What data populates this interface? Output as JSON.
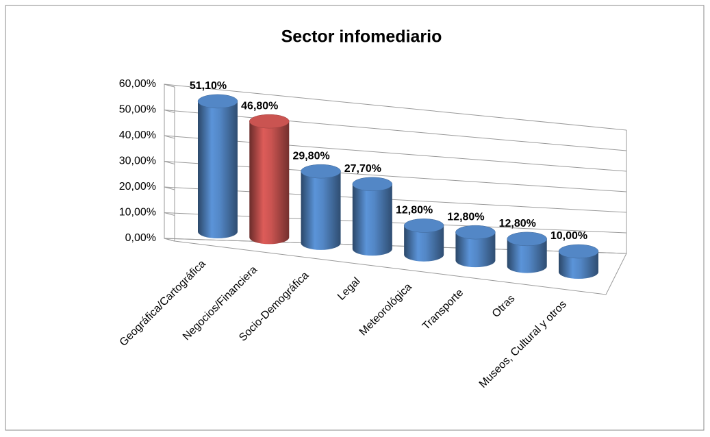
{
  "chart_data": {
    "type": "bar3d",
    "title": "Sector infomediario",
    "categories": [
      "Geográfica/Cartográfica",
      "Negocios/Financiera",
      "Socio-Demográfica",
      "Legal",
      "Meteorológica",
      "Transporte",
      "Otras",
      "Museos, Cultural y otros"
    ],
    "values": [
      51.1,
      46.8,
      29.8,
      27.7,
      12.8,
      12.8,
      12.8,
      10.0
    ],
    "value_labels": [
      "51,10%",
      "46,80%",
      "29,80%",
      "27,70%",
      "12,80%",
      "12,80%",
      "12,80%",
      "10,00%"
    ],
    "colors": [
      "#4f81bd",
      "#c0504d",
      "#4f81bd",
      "#4f81bd",
      "#4f81bd",
      "#4f81bd",
      "#4f81bd",
      "#4f81bd"
    ],
    "ylim": [
      0,
      60
    ],
    "yticks": [
      {
        "value": 0,
        "label": "0,00%"
      },
      {
        "value": 10,
        "label": "10,00%"
      },
      {
        "value": 20,
        "label": "20,00%"
      },
      {
        "value": 30,
        "label": "30,00%"
      },
      {
        "value": 40,
        "label": "40,00%"
      },
      {
        "value": 50,
        "label": "50,00%"
      },
      {
        "value": 60,
        "label": "60,00%"
      }
    ],
    "grid": true
  }
}
